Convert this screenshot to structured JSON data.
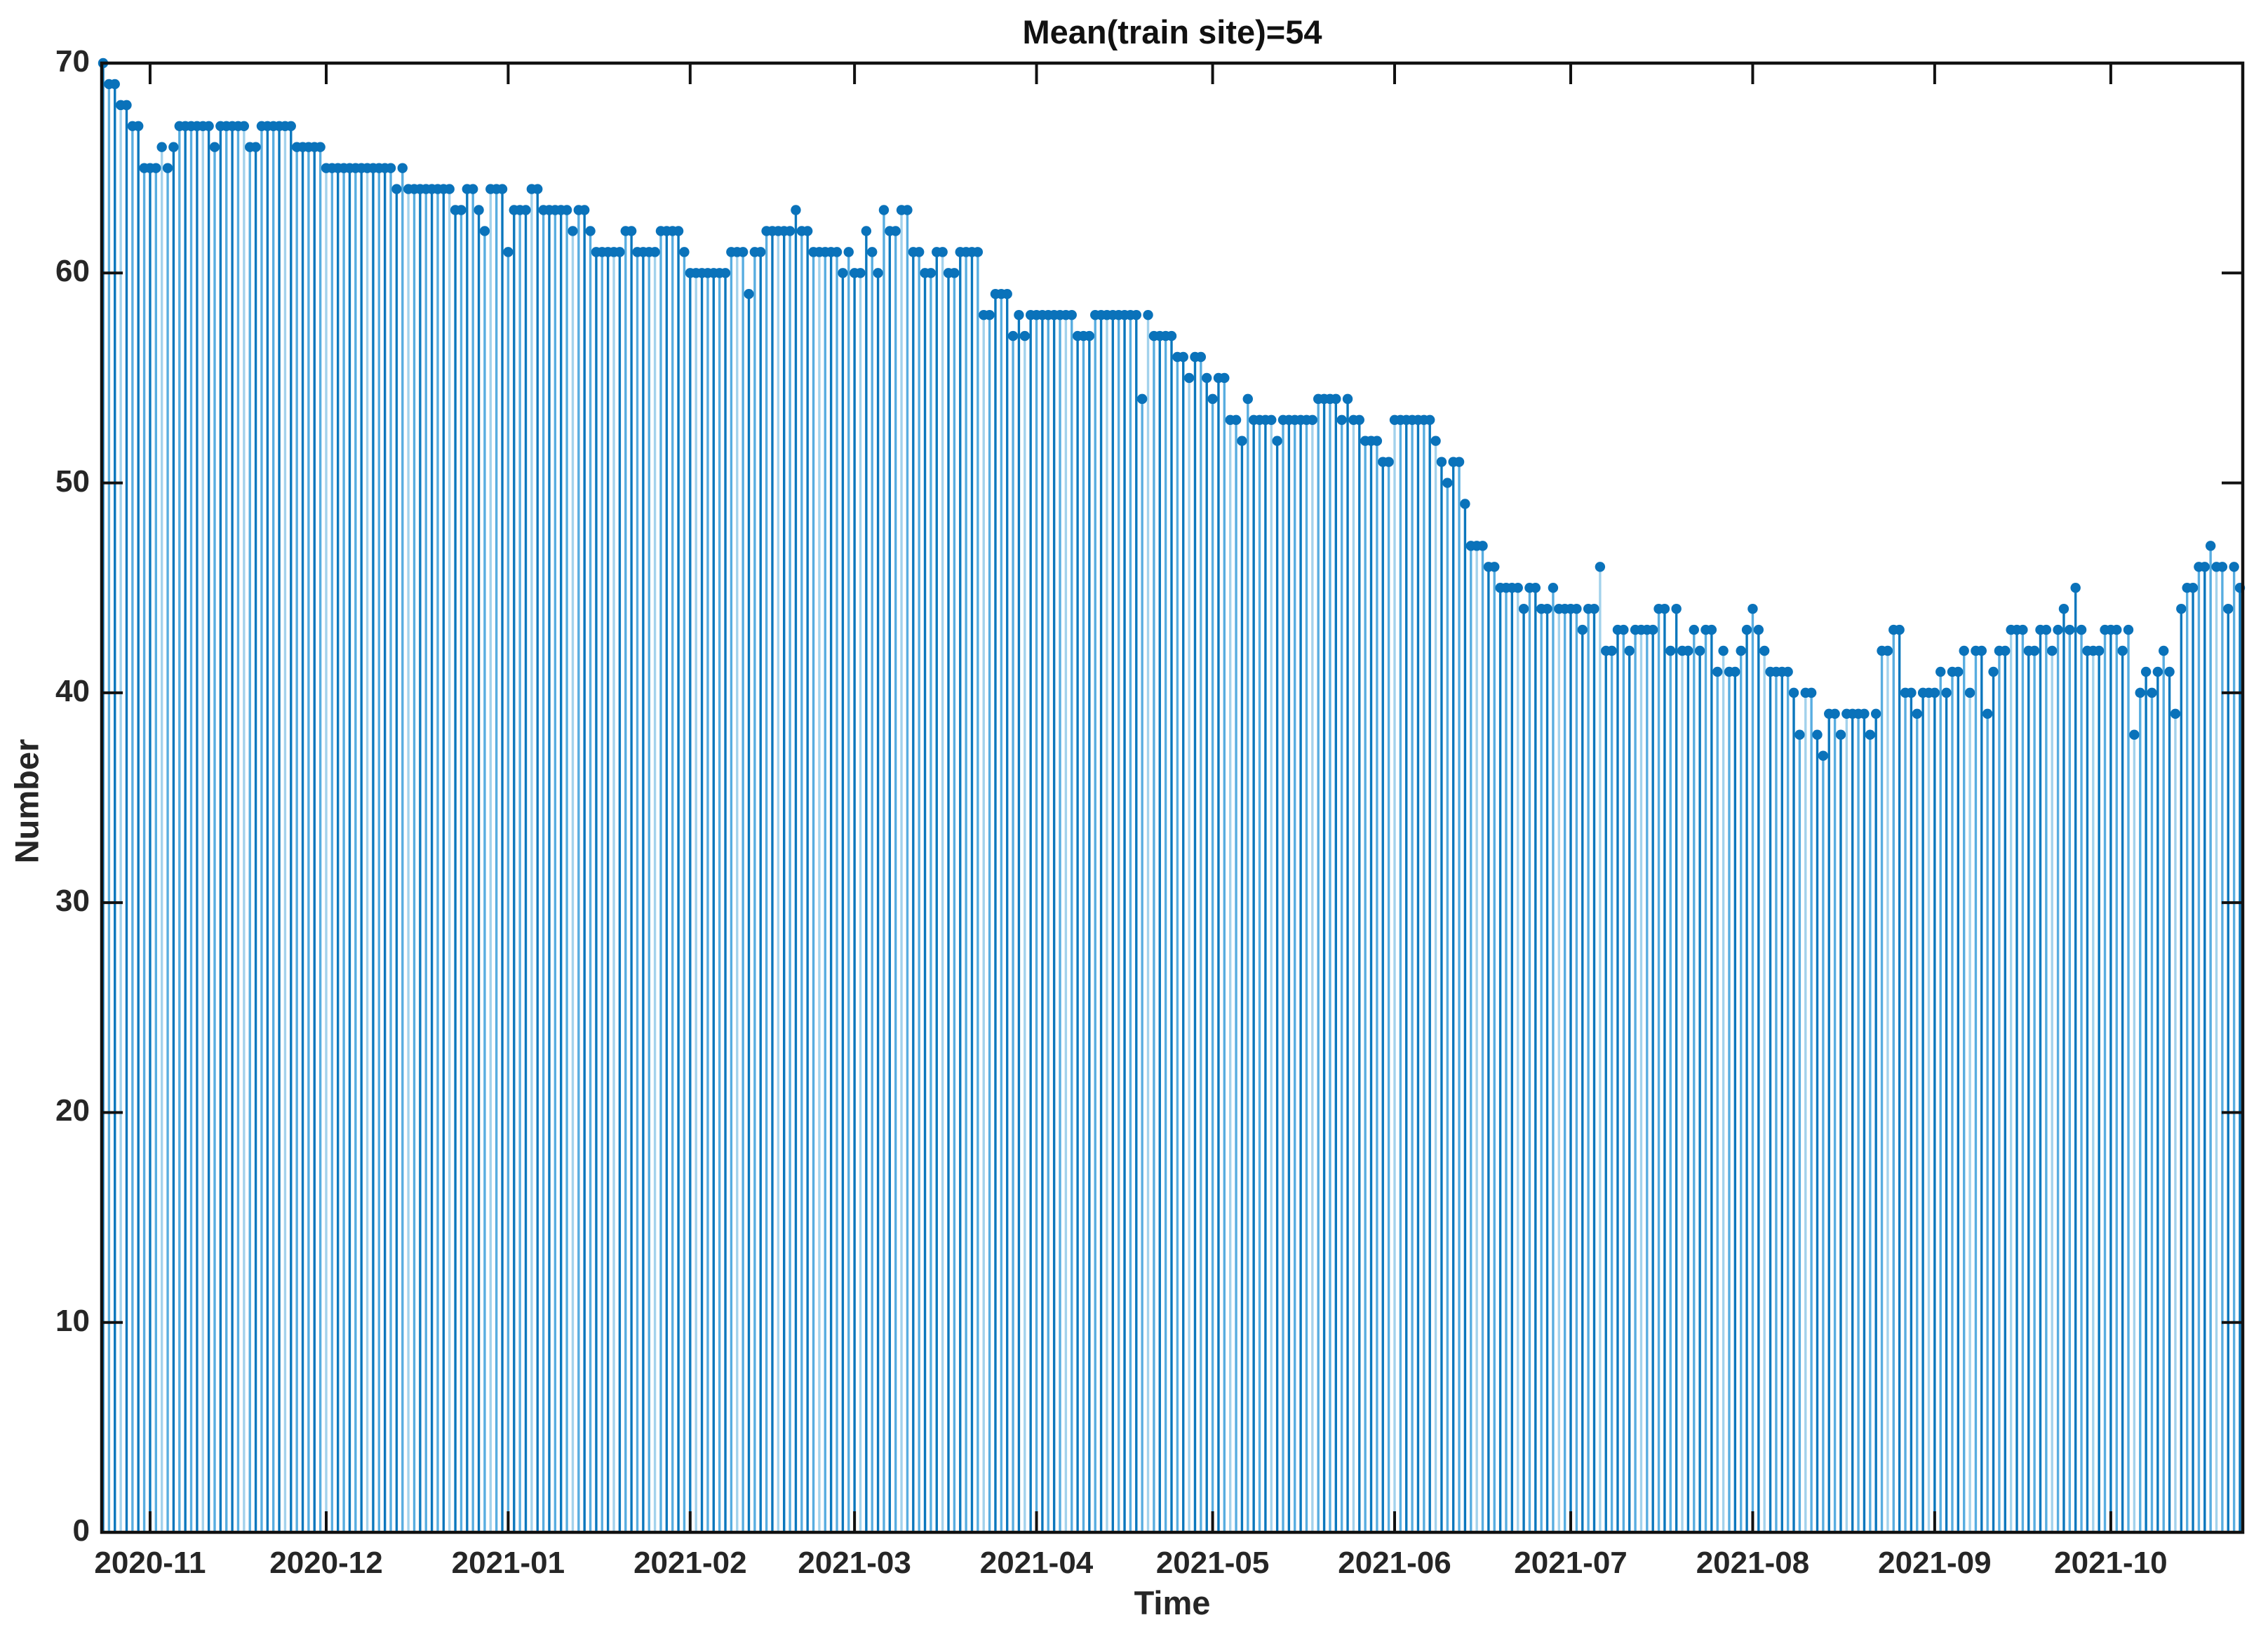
{
  "figure": {
    "title": "Mean(train site)=54"
  },
  "chart_data": {
    "type": "stem",
    "title": "Mean(train site)=54",
    "xlabel": "Time",
    "ylabel": "Number",
    "ylim": [
      0,
      70
    ],
    "yticks": [
      0,
      10,
      20,
      30,
      40,
      50,
      60,
      70
    ],
    "grid": false,
    "legend": "none",
    "box": true,
    "tick_direction": "in",
    "xtick_labels": [
      "2020-11",
      "2020-12",
      "2021-01",
      "2021-02",
      "2021-03",
      "2021-04",
      "2021-05",
      "2021-06",
      "2021-07",
      "2021-08",
      "2021-09",
      "2021-10"
    ],
    "xtick_day_index": [
      8,
      38,
      69,
      100,
      128,
      159,
      189,
      220,
      250,
      281,
      312,
      342
    ],
    "x_start_label": "2020-10-24",
    "n_points": 365,
    "values": [
      70,
      69,
      69,
      68,
      68,
      67,
      67,
      65,
      65,
      65,
      66,
      65,
      66,
      67,
      67,
      67,
      67,
      67,
      67,
      66,
      67,
      67,
      67,
      67,
      67,
      66,
      66,
      67,
      67,
      67,
      67,
      67,
      67,
      66,
      66,
      66,
      66,
      66,
      65,
      65,
      65,
      65,
      65,
      65,
      65,
      65,
      65,
      65,
      65,
      65,
      64,
      65,
      64,
      64,
      64,
      64,
      64,
      64,
      64,
      64,
      63,
      63,
      64,
      64,
      63,
      62,
      64,
      64,
      64,
      61,
      63,
      63,
      63,
      64,
      64,
      63,
      63,
      63,
      63,
      63,
      62,
      63,
      63,
      62,
      61,
      61,
      61,
      61,
      61,
      62,
      62,
      61,
      61,
      61,
      61,
      62,
      62,
      62,
      62,
      61,
      60,
      60,
      60,
      60,
      60,
      60,
      60,
      61,
      61,
      61,
      59,
      61,
      61,
      62,
      62,
      62,
      62,
      62,
      63,
      62,
      62,
      61,
      61,
      61,
      61,
      61,
      60,
      61,
      60,
      60,
      62,
      61,
      60,
      63,
      62,
      62,
      63,
      63,
      61,
      61,
      60,
      60,
      61,
      61,
      60,
      60,
      61,
      61,
      61,
      61,
      58,
      58,
      59,
      59,
      59,
      57,
      58,
      57,
      58,
      58,
      58,
      58,
      58,
      58,
      58,
      58,
      57,
      57,
      57,
      58,
      58,
      58,
      58,
      58,
      58,
      58,
      58,
      54,
      58,
      57,
      57,
      57,
      57,
      56,
      56,
      55,
      56,
      56,
      55,
      54,
      55,
      55,
      53,
      53,
      52,
      54,
      53,
      53,
      53,
      53,
      52,
      53,
      53,
      53,
      53,
      53,
      53,
      54,
      54,
      54,
      54,
      53,
      54,
      53,
      53,
      52,
      52,
      52,
      51,
      51,
      53,
      53,
      53,
      53,
      53,
      53,
      53,
      52,
      51,
      50,
      51,
      51,
      49,
      47,
      47,
      47,
      46,
      46,
      45,
      45,
      45,
      45,
      44,
      45,
      45,
      44,
      44,
      45,
      44,
      44,
      44,
      44,
      43,
      44,
      44,
      46,
      42,
      42,
      43,
      43,
      42,
      43,
      43,
      43,
      43,
      44,
      44,
      42,
      44,
      42,
      42,
      43,
      42,
      43,
      43,
      41,
      42,
      41,
      41,
      42,
      43,
      44,
      43,
      42,
      41,
      41,
      41,
      41,
      40,
      38,
      40,
      40,
      38,
      37,
      39,
      39,
      38,
      39,
      39,
      39,
      39,
      38,
      39,
      42,
      42,
      43,
      43,
      40,
      40,
      39,
      40,
      40,
      40,
      41,
      40,
      41,
      41,
      42,
      40,
      42,
      42,
      39,
      41,
      42,
      42,
      43,
      43,
      43,
      42,
      42,
      43,
      43,
      42,
      43,
      44,
      43,
      45,
      43,
      42,
      42,
      42,
      43,
      43,
      43,
      42,
      43,
      38,
      40,
      41,
      40,
      41,
      42,
      41,
      39,
      44,
      45,
      45,
      46,
      46,
      47,
      46,
      46,
      44,
      46,
      45
    ],
    "colors": {
      "stem_dark": "#0b77bd",
      "stem_light": "#58ade0",
      "stem_pale": "#a3d2ec",
      "marker": "#0a72ba",
      "axis": "#111111",
      "text": "#262626"
    }
  }
}
